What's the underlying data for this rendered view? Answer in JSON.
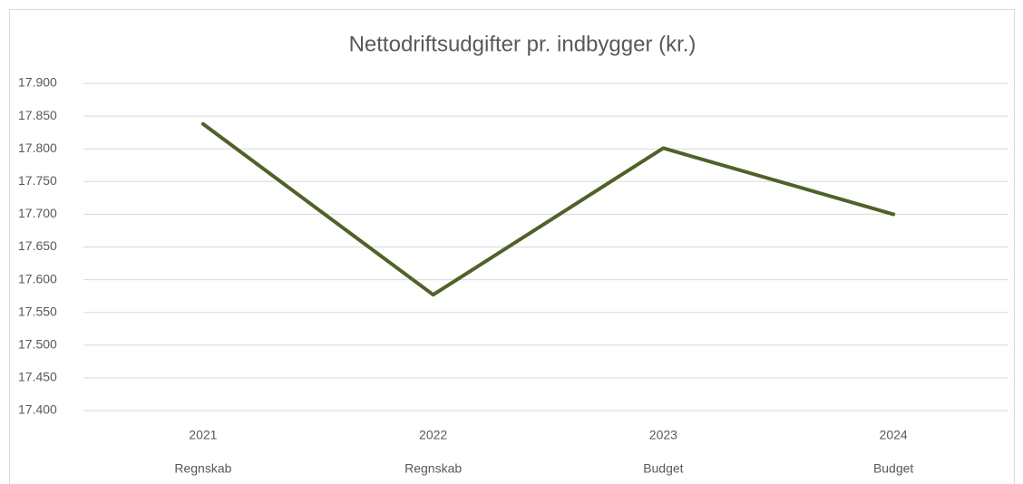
{
  "chart_data": {
    "type": "line",
    "title": "Nettodriftsudgifter pr. indbygger (kr.)",
    "categories": [
      "2021",
      "2022",
      "2023",
      "2024"
    ],
    "category_sublabels": [
      "Regnskab",
      "Regnskab",
      "Budget",
      "Budget"
    ],
    "values": [
      17838,
      17577,
      17801,
      17700
    ],
    "color": "#4f6228",
    "ylim": [
      17400,
      17900
    ],
    "yticks": [
      {
        "value": 17400,
        "label": "17.400"
      },
      {
        "value": 17450,
        "label": "17.450"
      },
      {
        "value": 17500,
        "label": "17.500"
      },
      {
        "value": 17550,
        "label": "17.550"
      },
      {
        "value": 17600,
        "label": "17.600"
      },
      {
        "value": 17650,
        "label": "17.650"
      },
      {
        "value": 17700,
        "label": "17.700"
      },
      {
        "value": 17750,
        "label": "17.750"
      },
      {
        "value": 17800,
        "label": "17.800"
      },
      {
        "value": 17850,
        "label": "17.850"
      },
      {
        "value": 17900,
        "label": "17.900"
      }
    ],
    "grid": true
  }
}
